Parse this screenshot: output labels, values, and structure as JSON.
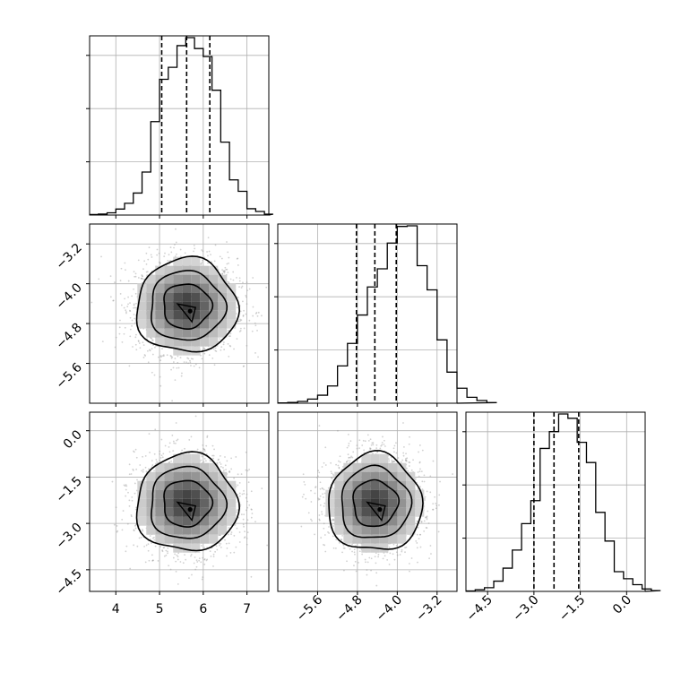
{
  "chart_data": {
    "type": "corner",
    "grid": true,
    "variables": [
      {
        "range": [
          3.4,
          7.5
        ],
        "ticks": [
          "4",
          "5",
          "6",
          "7"
        ]
      },
      {
        "range": [
          -6.4,
          -2.8
        ],
        "ticks": [
          "-5.6",
          "-4.8",
          "-4.0",
          "-3.2"
        ]
      },
      {
        "range": [
          -5.2,
          0.6
        ],
        "ticks": [
          "-4.5",
          "-3.0",
          "-1.5",
          "0.0"
        ]
      }
    ],
    "quantiles": [
      [
        5.05,
        5.62,
        6.15
      ],
      [
        -4.82,
        -4.45,
        -4.02
      ],
      [
        -3.0,
        -2.35,
        -1.55
      ]
    ],
    "histograms": [
      {
        "edges_from": 3.4,
        "bin_width": 0.2,
        "counts": [
          0.3,
          0.6,
          1.3,
          3.5,
          6.9,
          12.9,
          25.2,
          54.7,
          79.5,
          86.5,
          99.2,
          103.9,
          97.5,
          92.8,
          73.1,
          42.7,
          20.6,
          13.9,
          3.7,
          2.1,
          0.5
        ]
      },
      {
        "edges_from": -6.4,
        "bin_width": 0.2,
        "counts": [
          0.2,
          0.5,
          1.2,
          2.8,
          5.4,
          11.6,
          25.1,
          40.2,
          59.3,
          78.2,
          90.4,
          107.7,
          118.9,
          119.3,
          92.5,
          76.2,
          42.6,
          20.9,
          10.1,
          4.0,
          1.8,
          0.4
        ]
      },
      {
        "edges_from": -5.2,
        "bin_width": 0.3,
        "counts": [
          0.3,
          1.0,
          2.3,
          6.4,
          14.5,
          25.8,
          42.3,
          56.6,
          89.2,
          99.7,
          110.7,
          108.0,
          93.0,
          80.4,
          49.3,
          31.4,
          12.3,
          7.9,
          4.2,
          1.5,
          0.5
        ]
      }
    ],
    "pairs": [
      {
        "x_var": 0,
        "y_var": 1,
        "mean": [
          5.62,
          -4.45
        ],
        "sd": [
          0.55,
          0.45
        ],
        "peak": [
          5.7,
          -4.55
        ]
      },
      {
        "x_var": 0,
        "y_var": 2,
        "mean": [
          5.62,
          -2.35
        ],
        "sd": [
          0.55,
          0.75
        ],
        "peak": [
          5.7,
          -2.55
        ]
      },
      {
        "x_var": 1,
        "y_var": 2,
        "mean": [
          -4.45,
          -2.35
        ],
        "sd": [
          0.45,
          0.75
        ],
        "peak": [
          -4.35,
          -2.55
        ]
      }
    ]
  }
}
